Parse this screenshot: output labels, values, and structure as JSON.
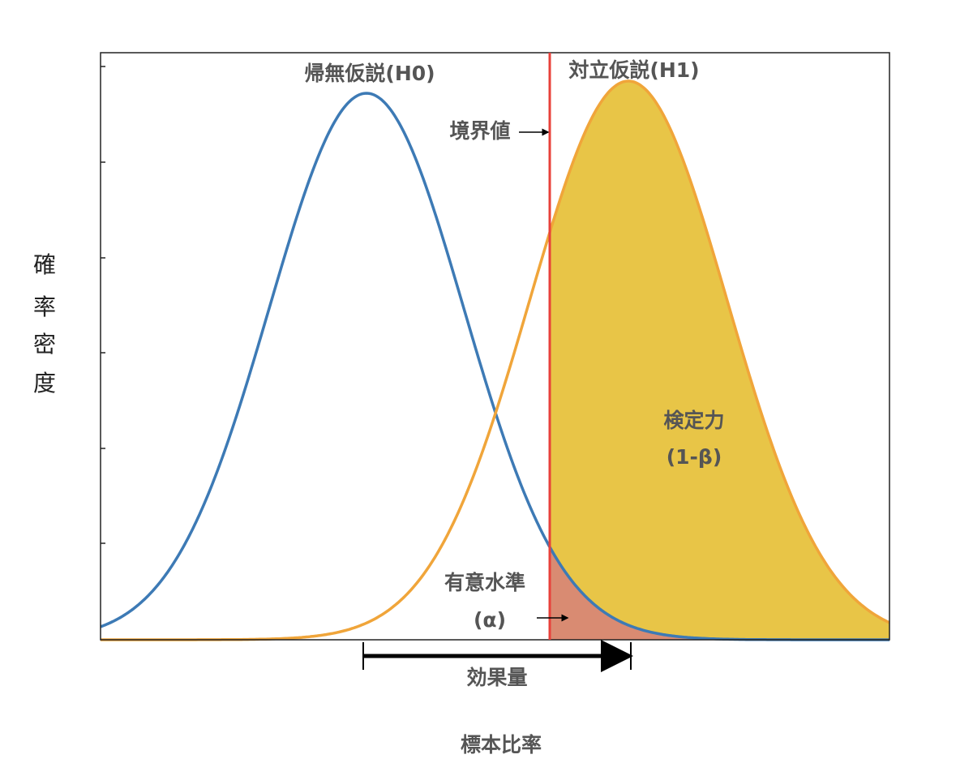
{
  "labels": {
    "h0": "帰無仮説(H0)",
    "h1": "対立仮説(H1)",
    "threshold": "境界値",
    "power": "検定力",
    "power_formula": "(1-β)",
    "alpha": "有意水準",
    "alpha_symbol": "(α)",
    "effect_size": "効果量"
  },
  "axes": {
    "x_label": "標本比率",
    "y_label": [
      "確",
      "率",
      "密",
      "度"
    ]
  }
}
